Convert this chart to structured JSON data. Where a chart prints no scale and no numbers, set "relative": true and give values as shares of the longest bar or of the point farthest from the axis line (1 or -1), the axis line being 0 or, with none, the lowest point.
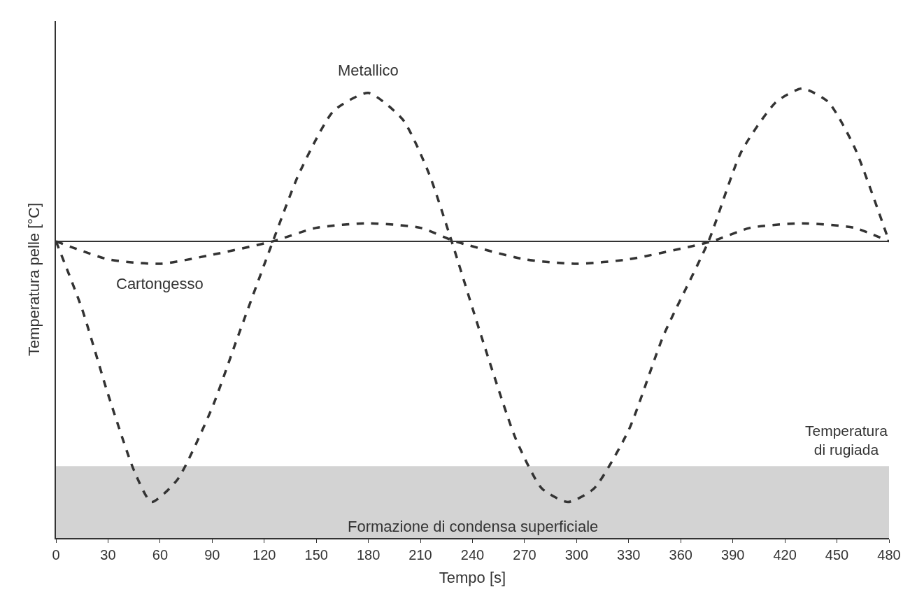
{
  "chart_data": {
    "type": "line",
    "relative": true,
    "xlabel": "Tempo [s]",
    "ylabel": "Temperatura pelle [°C]",
    "xlim": [
      0,
      480
    ],
    "xticks": [
      0,
      30,
      60,
      90,
      120,
      150,
      180,
      210,
      240,
      270,
      300,
      330,
      360,
      390,
      420,
      450,
      480
    ],
    "grid": false,
    "legend": false,
    "line_style": "dashed",
    "marker": "none",
    "series": [
      {
        "name": "Metallico",
        "color": "#333333",
        "x": [
          0,
          15,
          30,
          45,
          55,
          70,
          90,
          105,
          125,
          140,
          160,
          180,
          200,
          215,
          228,
          245,
          265,
          280,
          295,
          310,
          330,
          350,
          376,
          395,
          415,
          430,
          445,
          460,
          480
        ],
        "values": [
          0.66,
          0.51,
          0.32,
          0.15,
          0.08,
          0.13,
          0.29,
          0.45,
          0.66,
          0.81,
          0.95,
          0.99,
          0.93,
          0.81,
          0.66,
          0.45,
          0.22,
          0.11,
          0.08,
          0.11,
          0.24,
          0.45,
          0.66,
          0.86,
          0.97,
          1.0,
          0.97,
          0.87,
          0.66
        ]
      },
      {
        "name": "Cartongesso",
        "color": "#333333",
        "x": [
          0,
          30,
          60,
          90,
          125,
          150,
          180,
          210,
          230,
          270,
          300,
          330,
          378,
          400,
          430,
          460,
          480
        ],
        "values": [
          0.66,
          0.62,
          0.61,
          0.63,
          0.66,
          0.69,
          0.7,
          0.69,
          0.66,
          0.62,
          0.61,
          0.62,
          0.66,
          0.69,
          0.7,
          0.69,
          0.66
        ]
      }
    ],
    "ref_lines": [
      {
        "axis": "y",
        "value": 0.66,
        "color": "#333333",
        "line_style": "solid"
      }
    ],
    "bands": [
      {
        "axis": "y",
        "from": 0,
        "to": 0.16,
        "label": "Formazione di condensa superficiale",
        "color": "#d3d3d3"
      }
    ],
    "annotations": [
      "Temperatura di rugiada"
    ]
  }
}
